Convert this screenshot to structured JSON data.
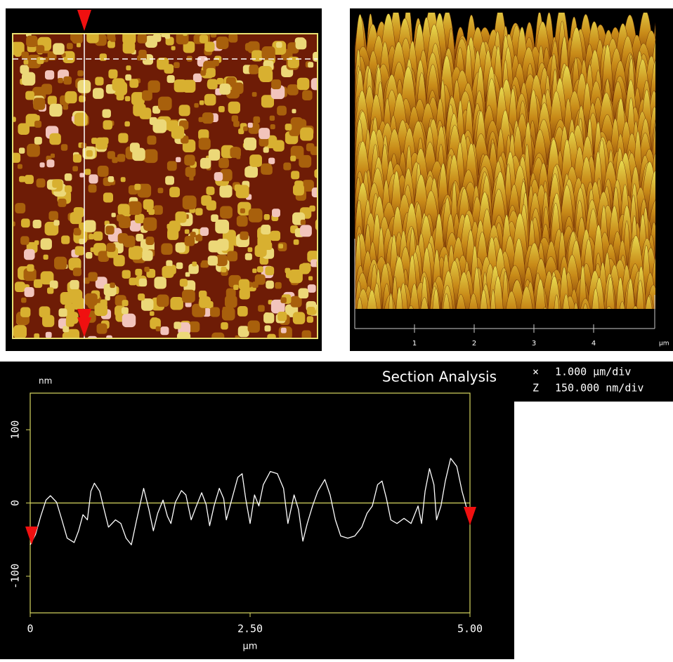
{
  "chart_data": [
    {
      "type": "line",
      "title": "Section Analysis",
      "xlabel": "µm",
      "ylabel": "nm",
      "xlim": [
        0,
        5
      ],
      "ylim": [
        -150,
        150
      ],
      "xticks": [
        0,
        {
          "value": 2.5,
          "label": "2.50"
        },
        {
          "value": 5,
          "label": "5.00"
        }
      ],
      "yticks": [
        -100,
        0,
        100
      ],
      "hline": 0,
      "hline_color": "#d8d860",
      "color": "#ffffff",
      "x": [
        0,
        0.06,
        0.12,
        0.18,
        0.23,
        0.3,
        0.36,
        0.42,
        0.5,
        0.55,
        0.6,
        0.65,
        0.69,
        0.73,
        0.79,
        0.84,
        0.89,
        0.97,
        1.03,
        1.09,
        1.15,
        1.21,
        1.29,
        1.35,
        1.4,
        1.45,
        1.51,
        1.56,
        1.6,
        1.65,
        1.72,
        1.77,
        1.83,
        1.89,
        1.95,
        2.0,
        2.04,
        2.09,
        2.15,
        2.2,
        2.23,
        2.29,
        2.36,
        2.41,
        2.45,
        2.5,
        2.55,
        2.6,
        2.65,
        2.73,
        2.81,
        2.88,
        2.93,
        3.0,
        3.05,
        3.1,
        3.15,
        3.21,
        3.27,
        3.35,
        3.41,
        3.47,
        3.53,
        3.61,
        3.69,
        3.77,
        3.83,
        3.89,
        3.95,
        4.0,
        4.05,
        4.1,
        4.17,
        4.25,
        4.33,
        4.41,
        4.45,
        4.49,
        4.54,
        4.59,
        4.62,
        4.67,
        4.72,
        4.78,
        4.85,
        4.91,
        4.96,
        5.0
      ],
      "values": [
        -57,
        -43,
        -18,
        4,
        10,
        1,
        -23,
        -48,
        -54,
        -38,
        -16,
        -23,
        16,
        27,
        16,
        -9,
        -33,
        -23,
        -28,
        -48,
        -57,
        -23,
        20,
        -9,
        -38,
        -14,
        4,
        -18,
        -28,
        1,
        17,
        11,
        -23,
        -4,
        14,
        -2,
        -31,
        -4,
        20,
        6,
        -23,
        4,
        35,
        40,
        6,
        -28,
        11,
        -4,
        25,
        43,
        40,
        20,
        -28,
        11,
        -9,
        -52,
        -28,
        -4,
        16,
        32,
        11,
        -23,
        -45,
        -48,
        -45,
        -33,
        -14,
        -4,
        25,
        30,
        6,
        -23,
        -28,
        -21,
        -28,
        -4,
        -28,
        16,
        47,
        25,
        -23,
        -4,
        30,
        61,
        50,
        16,
        -6,
        -18
      ],
      "scale_labels": [
        {
          "axis": "×",
          "text": "1.000 µm/div"
        },
        {
          "axis": "Z",
          "text": "150.000 nm/div"
        }
      ]
    },
    {
      "type": "surface",
      "xlabel": "µm",
      "xlim": [
        0,
        5
      ],
      "xticks": [
        1,
        2,
        3,
        4
      ]
    }
  ]
}
